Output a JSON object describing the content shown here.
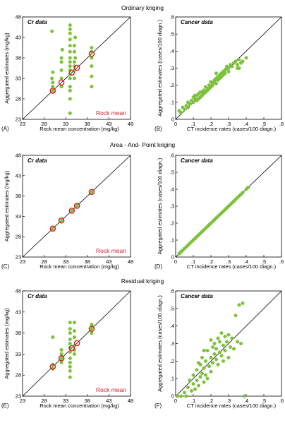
{
  "section_titles": [
    "Ordinary kriging",
    "Area - And- Point kriging",
    "Residual kriging"
  ],
  "colors": {
    "points": "#7cc23a",
    "rock_stroke": "#d4202a",
    "rock_text": "#d4202a",
    "diag": "#000000"
  },
  "chart_data": [
    {
      "id": "A",
      "type": "scatter",
      "title": "Cr data",
      "panel_label": "(A)",
      "xlabel": "Rock mean concentration (mg/kg)",
      "ylabel": "Aggregated estimates (mg/kg)",
      "xlim": [
        23,
        48
      ],
      "ylim": [
        23,
        48
      ],
      "xticks": [
        "23",
        "28",
        "33",
        "38",
        "43",
        "48"
      ],
      "yticks": [
        "23",
        "28",
        "33",
        "38",
        "43",
        "48"
      ],
      "annotation": "Rock mean",
      "points": [
        [
          30,
          30
        ],
        [
          30,
          31
        ],
        [
          30,
          32
        ],
        [
          29.8,
          33
        ],
        [
          30,
          34.5
        ],
        [
          29.8,
          44.5
        ],
        [
          32,
          31
        ],
        [
          32,
          33
        ],
        [
          32,
          35
        ],
        [
          32,
          37
        ],
        [
          32,
          38
        ],
        [
          32.2,
          40
        ],
        [
          34,
          28
        ],
        [
          34,
          30
        ],
        [
          34,
          31
        ],
        [
          34,
          33
        ],
        [
          34,
          34
        ],
        [
          34,
          35
        ],
        [
          34,
          36
        ],
        [
          34,
          37
        ],
        [
          34,
          38
        ],
        [
          34,
          39.5
        ],
        [
          34,
          41
        ],
        [
          34,
          42.5
        ],
        [
          34,
          44
        ],
        [
          34,
          45
        ],
        [
          34,
          46
        ],
        [
          34,
          24.5
        ],
        [
          35,
          33
        ],
        [
          35,
          35
        ],
        [
          35,
          36
        ],
        [
          35,
          37
        ],
        [
          35.2,
          38
        ],
        [
          35,
          39.5
        ],
        [
          35,
          41
        ],
        [
          35.2,
          43
        ],
        [
          39,
          31
        ],
        [
          39,
          33.5
        ],
        [
          39,
          36
        ],
        [
          39,
          38
        ],
        [
          39,
          39.5
        ],
        [
          39,
          40.5
        ]
      ],
      "rock_means": [
        [
          30,
          30
        ],
        [
          32,
          32
        ],
        [
          34.4,
          34.4
        ],
        [
          35.6,
          35.6
        ],
        [
          39,
          39
        ]
      ]
    },
    {
      "id": "B",
      "type": "scatter",
      "title": "Cancer data",
      "panel_label": "(B)",
      "xlabel": "CT incidence rates (cases/100 diagn.)",
      "ylabel": "Aggregated estimates (cases/100 diagn.)",
      "xlim": [
        0,
        0.6
      ],
      "ylim": [
        0,
        0.6
      ],
      "xticks": [
        "0",
        ".1",
        ".2",
        ".3",
        ".4",
        ".5",
        ".6"
      ],
      "yticks": [
        "0",
        ".1",
        ".2",
        ".3",
        ".4",
        ".5",
        ".6"
      ],
      "points": [
        [
          0.02,
          0.05
        ],
        [
          0.03,
          0.04
        ],
        [
          0.04,
          0.07
        ],
        [
          0.05,
          0.06
        ],
        [
          0.06,
          0.08
        ],
        [
          0.07,
          0.07
        ],
        [
          0.07,
          0.1
        ],
        [
          0.08,
          0.09
        ],
        [
          0.09,
          0.11
        ],
        [
          0.1,
          0.1
        ],
        [
          0.1,
          0.13
        ],
        [
          0.11,
          0.12
        ],
        [
          0.12,
          0.14
        ],
        [
          0.12,
          0.11
        ],
        [
          0.13,
          0.15
        ],
        [
          0.13,
          0.12
        ],
        [
          0.14,
          0.13
        ],
        [
          0.15,
          0.16
        ],
        [
          0.15,
          0.14
        ],
        [
          0.16,
          0.17
        ],
        [
          0.16,
          0.15
        ],
        [
          0.17,
          0.16
        ],
        [
          0.17,
          0.19
        ],
        [
          0.18,
          0.18
        ],
        [
          0.18,
          0.17
        ],
        [
          0.19,
          0.2
        ],
        [
          0.19,
          0.18
        ],
        [
          0.2,
          0.19
        ],
        [
          0.2,
          0.22
        ],
        [
          0.21,
          0.21
        ],
        [
          0.21,
          0.2
        ],
        [
          0.22,
          0.23
        ],
        [
          0.22,
          0.22
        ],
        [
          0.23,
          0.24
        ],
        [
          0.23,
          0.21
        ],
        [
          0.24,
          0.25
        ],
        [
          0.24,
          0.23
        ],
        [
          0.25,
          0.26
        ],
        [
          0.25,
          0.24
        ],
        [
          0.26,
          0.27
        ],
        [
          0.26,
          0.25
        ],
        [
          0.27,
          0.28
        ],
        [
          0.27,
          0.26
        ],
        [
          0.28,
          0.29
        ],
        [
          0.28,
          0.27
        ],
        [
          0.29,
          0.3
        ],
        [
          0.29,
          0.31
        ],
        [
          0.3,
          0.3
        ],
        [
          0.3,
          0.28
        ],
        [
          0.31,
          0.32
        ],
        [
          0.32,
          0.31
        ],
        [
          0.33,
          0.33
        ],
        [
          0.34,
          0.34
        ],
        [
          0.35,
          0.32
        ],
        [
          0.36,
          0.35
        ],
        [
          0.37,
          0.33
        ],
        [
          0.38,
          0.34
        ],
        [
          0.4,
          0.36
        ],
        [
          0.36,
          0.3
        ],
        [
          0.35,
          0.3
        ],
        [
          0.14,
          0.16
        ],
        [
          0.11,
          0.14
        ],
        [
          0.23,
          0.27
        ]
      ]
    },
    {
      "id": "C",
      "type": "scatter",
      "title": "Cr data",
      "panel_label": "(C)",
      "xlabel": "Rock mean concentration (mg/kg)",
      "ylabel": "Aggregated estimates (mg/kg)",
      "xlim": [
        23,
        48
      ],
      "ylim": [
        23,
        48
      ],
      "xticks": [
        "23",
        "28",
        "33",
        "38",
        "43",
        "48"
      ],
      "yticks": [
        "23",
        "28",
        "33",
        "38",
        "43",
        "48"
      ],
      "annotation": "Rock mean",
      "points": [
        [
          30,
          30
        ],
        [
          32,
          32
        ],
        [
          34.4,
          34.4
        ],
        [
          35.6,
          35.6
        ],
        [
          39,
          39
        ]
      ],
      "rock_means": [
        [
          30,
          30
        ],
        [
          32,
          32
        ],
        [
          34.4,
          34.4
        ],
        [
          35.6,
          35.6
        ],
        [
          39,
          39
        ]
      ]
    },
    {
      "id": "D",
      "type": "scatter",
      "title": "Cancer data",
      "panel_label": "(D)",
      "xlabel": "CT incidence rates (cases/100 diagn.)",
      "ylabel": "Aggregated estimates (cases/100 diagn.)",
      "xlim": [
        0,
        0.6
      ],
      "ylim": [
        0,
        0.6
      ],
      "xticks": [
        "0",
        ".1",
        ".2",
        ".3",
        ".4",
        ".5",
        ".6"
      ],
      "yticks": [
        "0",
        ".1",
        ".2",
        ".3",
        ".4",
        ".5",
        ".6"
      ],
      "points": [
        [
          0.02,
          0.02
        ],
        [
          0.03,
          0.03
        ],
        [
          0.04,
          0.04
        ],
        [
          0.05,
          0.05
        ],
        [
          0.06,
          0.06
        ],
        [
          0.07,
          0.07
        ],
        [
          0.08,
          0.08
        ],
        [
          0.09,
          0.09
        ],
        [
          0.1,
          0.1
        ],
        [
          0.11,
          0.11
        ],
        [
          0.12,
          0.12
        ],
        [
          0.13,
          0.13
        ],
        [
          0.14,
          0.14
        ],
        [
          0.15,
          0.15
        ],
        [
          0.16,
          0.16
        ],
        [
          0.17,
          0.17
        ],
        [
          0.18,
          0.18
        ],
        [
          0.19,
          0.19
        ],
        [
          0.2,
          0.2
        ],
        [
          0.21,
          0.21
        ],
        [
          0.22,
          0.22
        ],
        [
          0.23,
          0.23
        ],
        [
          0.24,
          0.24
        ],
        [
          0.25,
          0.25
        ],
        [
          0.26,
          0.26
        ],
        [
          0.27,
          0.27
        ],
        [
          0.28,
          0.28
        ],
        [
          0.29,
          0.29
        ],
        [
          0.3,
          0.3
        ],
        [
          0.31,
          0.31
        ],
        [
          0.32,
          0.32
        ],
        [
          0.33,
          0.33
        ],
        [
          0.34,
          0.34
        ],
        [
          0.35,
          0.35
        ],
        [
          0.36,
          0.36
        ],
        [
          0.37,
          0.37
        ],
        [
          0.38,
          0.38
        ],
        [
          0.4,
          0.4
        ],
        [
          0.41,
          0.41
        ]
      ]
    },
    {
      "id": "E",
      "type": "scatter",
      "title": "Cr data",
      "panel_label": "(E)",
      "xlabel": "Rock mean concentration (mg/kg)",
      "ylabel": "Aggregated estimates (mg/kg)",
      "xlim": [
        23,
        48
      ],
      "ylim": [
        23,
        48
      ],
      "xticks": [
        "23",
        "28",
        "33",
        "38",
        "43",
        "48"
      ],
      "yticks": [
        "23",
        "28",
        "33",
        "38",
        "43",
        "48"
      ],
      "annotation": "Rock mean",
      "points": [
        [
          30,
          29.5
        ],
        [
          30,
          30.5
        ],
        [
          30,
          37
        ],
        [
          32,
          31
        ],
        [
          32,
          32
        ],
        [
          32,
          33
        ],
        [
          32,
          34
        ],
        [
          34,
          27.5
        ],
        [
          34,
          29
        ],
        [
          34,
          30
        ],
        [
          34,
          31
        ],
        [
          34,
          32
        ],
        [
          34,
          33.5
        ],
        [
          34,
          34.5
        ],
        [
          34,
          35.5
        ],
        [
          34,
          36.5
        ],
        [
          34,
          38
        ],
        [
          34,
          39
        ],
        [
          34,
          40.5
        ],
        [
          35,
          33
        ],
        [
          35,
          34
        ],
        [
          35,
          35
        ],
        [
          35,
          37
        ],
        [
          35,
          38.5
        ],
        [
          35,
          40.5
        ],
        [
          39,
          38
        ],
        [
          39,
          39
        ],
        [
          39,
          40
        ],
        [
          39.2,
          39.5
        ]
      ],
      "rock_means": [
        [
          30,
          30
        ],
        [
          32,
          32
        ],
        [
          34.4,
          34.4
        ],
        [
          35.6,
          35.6
        ],
        [
          39,
          39
        ]
      ]
    },
    {
      "id": "F",
      "type": "scatter",
      "title": "Cancer data",
      "panel_label": "(F)",
      "xlabel": "CT incidence rates (cases/100 diagn.)",
      "ylabel": "Aggregated estimates (cases/100 diagn.)",
      "xlim": [
        0,
        0.6
      ],
      "ylim": [
        0,
        0.6
      ],
      "xticks": [
        "0",
        ".1",
        ".2",
        ".3",
        ".4",
        ".5",
        ".6"
      ],
      "yticks": [
        "0",
        ".1",
        ".2",
        ".3",
        ".4",
        ".5",
        ".6"
      ],
      "points": [
        [
          0.01,
          0.0
        ],
        [
          0.03,
          0.0
        ],
        [
          0.05,
          0.02
        ],
        [
          0.06,
          0.0
        ],
        [
          0.07,
          0.05
        ],
        [
          0.08,
          0.09
        ],
        [
          0.09,
          0.03
        ],
        [
          0.1,
          0.07
        ],
        [
          0.1,
          0.12
        ],
        [
          0.11,
          0.04
        ],
        [
          0.12,
          0.09
        ],
        [
          0.12,
          0.15
        ],
        [
          0.13,
          0.06
        ],
        [
          0.14,
          0.11
        ],
        [
          0.14,
          0.18
        ],
        [
          0.15,
          0.13
        ],
        [
          0.15,
          0.22
        ],
        [
          0.16,
          0.08
        ],
        [
          0.16,
          0.16
        ],
        [
          0.17,
          0.2
        ],
        [
          0.17,
          0.12
        ],
        [
          0.18,
          0.26
        ],
        [
          0.18,
          0.1
        ],
        [
          0.19,
          0.17
        ],
        [
          0.2,
          0.22
        ],
        [
          0.2,
          0.14
        ],
        [
          0.21,
          0.28
        ],
        [
          0.21,
          0.19
        ],
        [
          0.22,
          0.24
        ],
        [
          0.22,
          0.3
        ],
        [
          0.23,
          0.21
        ],
        [
          0.23,
          0.27
        ],
        [
          0.24,
          0.33
        ],
        [
          0.24,
          0.18
        ],
        [
          0.25,
          0.25
        ],
        [
          0.25,
          0.31
        ],
        [
          0.26,
          0.23
        ],
        [
          0.26,
          0.36
        ],
        [
          0.27,
          0.29
        ],
        [
          0.27,
          0.2
        ],
        [
          0.28,
          0.34
        ],
        [
          0.28,
          0.26
        ],
        [
          0.29,
          0.31
        ],
        [
          0.3,
          0.35
        ],
        [
          0.3,
          0.22
        ],
        [
          0.31,
          0.28
        ],
        [
          0.32,
          0.33
        ],
        [
          0.33,
          0.27
        ],
        [
          0.34,
          0.46
        ],
        [
          0.35,
          0.31
        ],
        [
          0.36,
          0.52
        ],
        [
          0.38,
          0.53
        ],
        [
          0.37,
          0.3
        ],
        [
          0.39,
          0.0
        ],
        [
          0.2,
          0.32
        ],
        [
          0.16,
          0.26
        ],
        [
          0.13,
          0.19
        ]
      ]
    }
  ]
}
